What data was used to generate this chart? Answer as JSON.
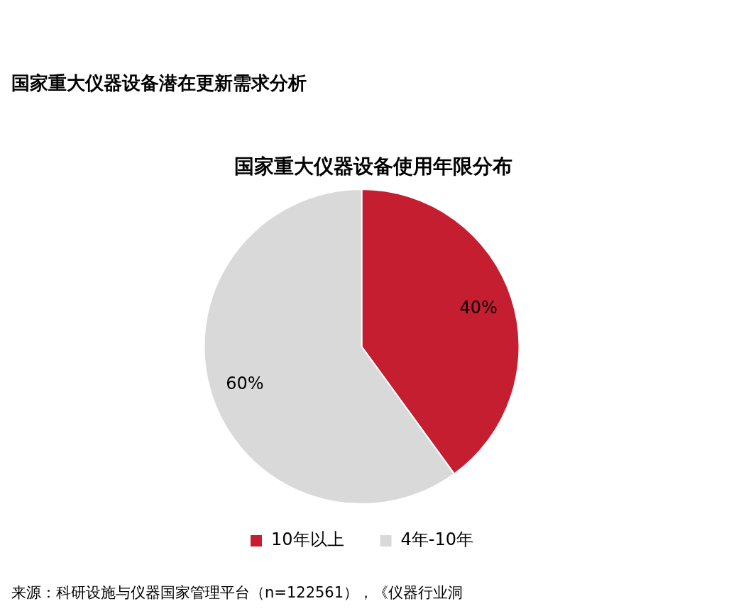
{
  "chart_data": {
    "type": "pie",
    "title": "国家重大仪器设备潜在更新需求分析",
    "subtitle": "国家重大仪器设备使用年限分布",
    "categories": [
      "10年以上",
      "4年-10年"
    ],
    "values": [
      40,
      60
    ],
    "colors": [
      "#c41e30",
      "#d9d9d9"
    ],
    "value_labels": [
      "40%",
      "60%"
    ],
    "legend": "bottom",
    "annotations": [
      "来源：科研设施与仪器国家管理平台（n=122561），《仪器行业洞"
    ]
  }
}
